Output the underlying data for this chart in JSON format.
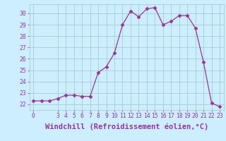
{
  "x": [
    0,
    1,
    2,
    3,
    4,
    5,
    6,
    7,
    8,
    9,
    10,
    11,
    12,
    13,
    14,
    15,
    16,
    17,
    18,
    19,
    20,
    21,
    22,
    23
  ],
  "y": [
    22.3,
    22.3,
    22.3,
    22.5,
    22.8,
    22.8,
    22.7,
    22.7,
    24.8,
    25.3,
    26.5,
    29.0,
    30.2,
    29.7,
    30.4,
    30.5,
    29.0,
    29.3,
    29.8,
    29.8,
    28.7,
    25.7,
    22.1,
    21.8
  ],
  "line_color": "#993399",
  "marker": "D",
  "marker_size": 2.5,
  "bg_color": "#cceeff",
  "grid_color": "#aacccc",
  "xlabel": "Windchill (Refroidissement éolien,°C)",
  "xlim": [
    -0.5,
    23.5
  ],
  "ylim": [
    21.5,
    30.8
  ],
  "yticks": [
    22,
    23,
    24,
    25,
    26,
    27,
    28,
    29,
    30
  ],
  "xticks": [
    0,
    3,
    4,
    5,
    6,
    7,
    8,
    9,
    10,
    11,
    12,
    13,
    14,
    15,
    16,
    17,
    18,
    19,
    20,
    21,
    22,
    23
  ],
  "tick_color": "#993399",
  "tick_fontsize": 5.8,
  "label_fontsize": 7.5
}
